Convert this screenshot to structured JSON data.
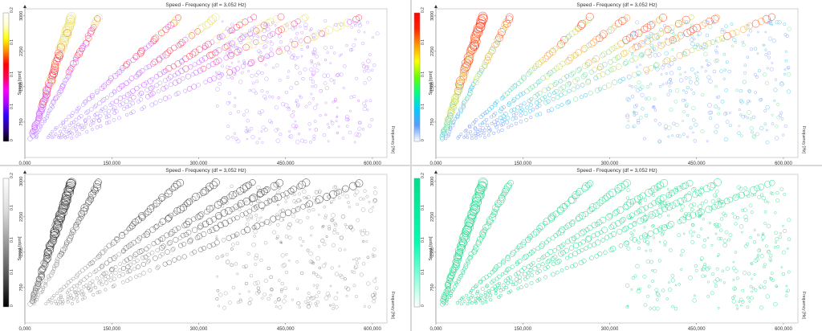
{
  "chart_data": [
    {
      "type": "scatter",
      "title": "Speed - Frequency (df = 3,052 Hz)",
      "ylabel": "Speed [rpm]",
      "xlabel": "Frequency [Hz]",
      "xlim": [
        0,
        625000
      ],
      "ylim": [
        0,
        3150
      ],
      "x_ticks": [
        "0,000",
        "150,000",
        "300,000",
        "450,000",
        "600,000"
      ],
      "x_tick_values": [
        0,
        150000,
        300000,
        450000,
        600000
      ],
      "y_ticks": [
        "750",
        "1500",
        "2250",
        "3000"
      ],
      "y_tick_values": [
        750,
        1500,
        2250,
        3000
      ],
      "colorbar": {
        "ticks": [
          "0",
          "0.1",
          "0.1",
          "0.1",
          "0.2"
        ],
        "label": "",
        "palette": "rainbow-full"
      },
      "orders": [
        7,
        11,
        23,
        28.5,
        34,
        38,
        42,
        50
      ],
      "marker_style": "hollow-circle"
    },
    {
      "type": "scatter",
      "title": "Speed - Frequency (df = 3,052 Hz)",
      "ylabel": "Speed [rpm]",
      "xlabel": "Frequency [Hz]",
      "xlim": [
        0,
        625000
      ],
      "ylim": [
        0,
        3150
      ],
      "x_ticks": [
        "0,000",
        "150,000",
        "300,000",
        "450,000",
        "600,000"
      ],
      "x_tick_values": [
        0,
        150000,
        300000,
        450000,
        600000
      ],
      "y_ticks": [
        "750",
        "1500",
        "2250",
        "3000"
      ],
      "y_tick_values": [
        750,
        1500,
        2250,
        3000
      ],
      "colorbar": {
        "ticks": [
          "0",
          "0.1",
          "0.1",
          "0.1",
          "0.2"
        ],
        "label": "",
        "palette": "rainbow"
      },
      "orders": [
        7,
        11,
        23,
        28.5,
        34,
        38,
        42,
        50
      ],
      "marker_style": "hollow-circle"
    },
    {
      "type": "scatter",
      "title": "Speed - Frequency (df = 3,052 Hz)",
      "ylabel": "Speed [rpm]",
      "xlabel": "Frequency [Hz]",
      "xlim": [
        0,
        625000
      ],
      "ylim": [
        0,
        3150
      ],
      "x_ticks": [
        "0,000",
        "150,000",
        "300,000",
        "450,000",
        "600,000"
      ],
      "x_tick_values": [
        0,
        150000,
        300000,
        450000,
        600000
      ],
      "y_ticks": [
        "750",
        "1500",
        "2250",
        "3000"
      ],
      "y_tick_values": [
        750,
        1500,
        2250,
        3000
      ],
      "colorbar": {
        "ticks": [
          "0",
          "0.1",
          "0.1",
          "0.1",
          "0.2"
        ],
        "label": "",
        "palette": "grayscale"
      },
      "orders": [
        7,
        11,
        23,
        28.5,
        34,
        38,
        42,
        50
      ],
      "marker_style": "hollow-circle"
    },
    {
      "type": "scatter",
      "title": "Speed - Frequency (df = 3,052 Hz)",
      "ylabel": "Speed [rpm]",
      "xlabel": "Frequency [Hz]",
      "xlim": [
        0,
        625000
      ],
      "ylim": [
        0,
        3150
      ],
      "x_ticks": [
        "0,000",
        "150,000",
        "300,000",
        "450,000",
        "600,000"
      ],
      "x_tick_values": [
        0,
        150000,
        300000,
        450000,
        600000
      ],
      "y_ticks": [
        "750",
        "1500",
        "2250",
        "3000"
      ],
      "y_tick_values": [
        750,
        1500,
        2250,
        3000
      ],
      "colorbar": {
        "ticks": [
          "0",
          "0.1",
          "0.1",
          "0.1",
          "0.2"
        ],
        "label": "",
        "palette": "green"
      },
      "orders": [
        7,
        11,
        23,
        28.5,
        34,
        38,
        42,
        50
      ],
      "marker_style": "hollow-circle"
    }
  ]
}
